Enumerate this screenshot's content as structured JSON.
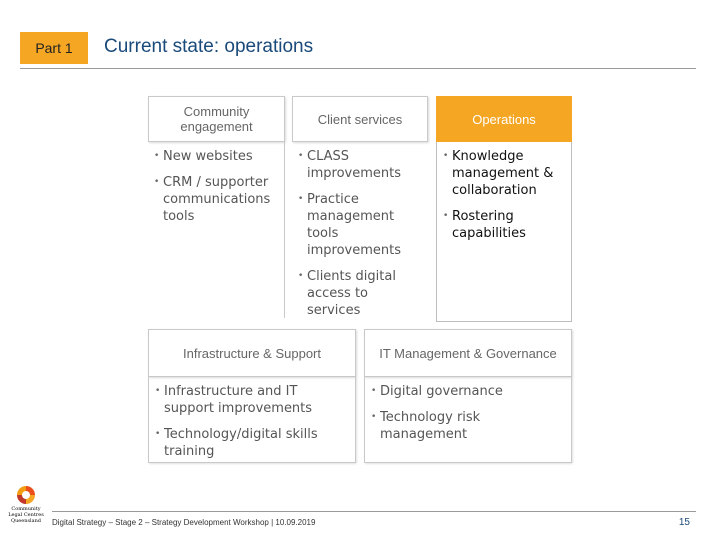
{
  "header": {
    "part_label": "Part 1",
    "title": "Current state: operations"
  },
  "columns": [
    {
      "heading": "Community engagement",
      "items": [
        "New websites",
        "CRM / supporter communications tools"
      ]
    },
    {
      "heading": "Client services",
      "items": [
        "CLASS improvements",
        "Practice management tools improvements",
        "Clients digital access to services"
      ]
    },
    {
      "heading": "Operations",
      "items": [
        "Knowledge management & collaboration",
        "Rostering capabilities"
      ]
    }
  ],
  "lower": [
    {
      "heading": "Infrastructure & Support",
      "items": [
        "Infrastructure and IT support improvements",
        "Technology/digital skills training"
      ]
    },
    {
      "heading": "IT Management & Governance",
      "items": [
        "Digital governance",
        "Technology risk management"
      ]
    }
  ],
  "footer": {
    "text": "Digital Strategy – Stage 2 – Strategy Development Workshop | 10.09.2019",
    "page_number": "15",
    "logo_text": "Community Legal Centres Queensland"
  },
  "colors": {
    "accent": "#f5a623",
    "title": "#1a4a7a"
  }
}
